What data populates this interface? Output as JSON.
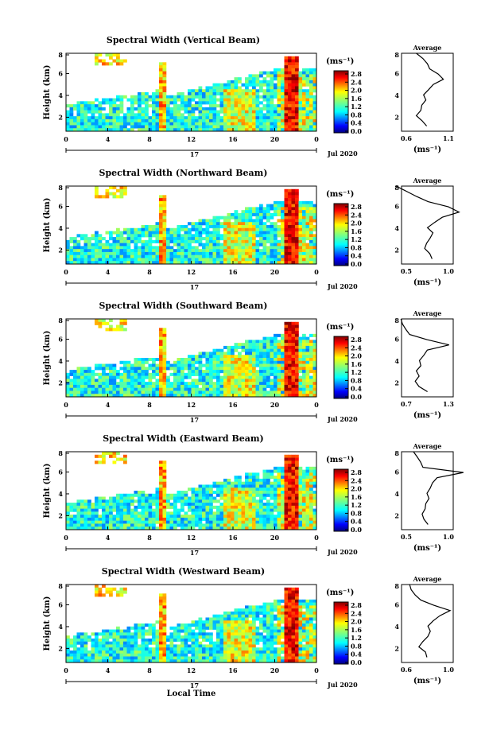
{
  "panels": [
    {
      "title": "Spectral Width (Vertical Beam)",
      "profile_xticks": [
        "0.6",
        "1.1"
      ]
    },
    {
      "title": "Spectral Width (Northward Beam)",
      "profile_xticks": [
        "0.5",
        "1.0"
      ]
    },
    {
      "title": "Spectral Width (Southward Beam)",
      "profile_xticks": [
        "0.7",
        "1.3"
      ]
    },
    {
      "title": "Spectral Width (Eastward Beam)",
      "profile_xticks": [
        "0.5",
        "1.0"
      ]
    },
    {
      "title": "Spectral Width (Westward Beam)",
      "profile_xticks": [
        "0.6",
        "1.0"
      ]
    }
  ],
  "common": {
    "ylabel": "Height (km)",
    "time_ticks": [
      "0",
      "4",
      "8",
      "12",
      "16",
      "20",
      "0"
    ],
    "height_ticks": [
      "8",
      "6",
      "4",
      "2"
    ],
    "date_day": "17",
    "date_label": "Jul 2020",
    "unit_label": "(ms⁻¹)",
    "colorbar_ticks": [
      "2.8",
      "2.4",
      "2.0",
      "1.6",
      "1.2",
      "0.8",
      "0.4",
      "0.0"
    ],
    "average_title": "Average",
    "profile_height_ticks": [
      "8",
      "6",
      "4",
      "2"
    ],
    "xlabel": "Local Time"
  },
  "colors": {
    "jet": [
      "#00007f",
      "#0000ff",
      "#007fff",
      "#00ffff",
      "#7fff7f",
      "#ffff00",
      "#ff7f00",
      "#ff0000",
      "#7f0000"
    ]
  },
  "chart_data": {
    "type": "heatmap",
    "x_range_hours": [
      0,
      24
    ],
    "y_range_km": [
      0.5,
      8
    ],
    "colorbar_range": [
      0.0,
      2.9
    ],
    "description_source": "time-height spectral width with average profile per beam",
    "profiles": [
      {
        "beam": "Vertical",
        "xlim": [
          0.6,
          1.1
        ],
        "heights": [
          1,
          1.5,
          2,
          2.5,
          3,
          3.5,
          4,
          4.5,
          5,
          5.5,
          6,
          6.5,
          7,
          7.5,
          8
        ],
        "values": [
          0.85,
          0.8,
          0.75,
          0.78,
          0.8,
          0.83,
          0.82,
          0.86,
          0.9,
          1.0,
          0.95,
          0.88,
          0.85,
          0.8,
          0.75
        ]
      },
      {
        "beam": "Northward",
        "xlim": [
          0.5,
          1.0
        ],
        "heights": [
          1,
          1.5,
          2,
          2.5,
          3,
          3.5,
          4,
          4.5,
          5,
          5.5,
          6,
          6.5,
          7,
          7.5,
          8
        ],
        "values": [
          0.8,
          0.78,
          0.72,
          0.75,
          0.78,
          0.8,
          0.75,
          0.82,
          0.9,
          1.05,
          0.95,
          0.75,
          0.65,
          0.55,
          0.45
        ]
      },
      {
        "beam": "Southward",
        "xlim": [
          0.7,
          1.3
        ],
        "heights": [
          1,
          1.5,
          2,
          2.5,
          3,
          3.5,
          4,
          4.5,
          5,
          5.5,
          6,
          6.5,
          7,
          7.5,
          8
        ],
        "values": [
          1.0,
          0.9,
          0.85,
          0.9,
          0.88,
          0.92,
          0.9,
          0.95,
          1.0,
          1.25,
          1.0,
          0.8,
          0.75,
          0.72,
          0.7
        ]
      },
      {
        "beam": "Eastward",
        "xlim": [
          0.5,
          1.0
        ],
        "heights": [
          1,
          1.5,
          2,
          2.5,
          3,
          3.5,
          4,
          4.5,
          5,
          5.5,
          6,
          6.5,
          7,
          7.5,
          8
        ],
        "values": [
          0.75,
          0.72,
          0.7,
          0.72,
          0.74,
          0.76,
          0.75,
          0.78,
          0.8,
          0.85,
          1.1,
          0.7,
          0.68,
          0.65,
          0.62
        ]
      },
      {
        "beam": "Westward",
        "xlim": [
          0.6,
          1.0
        ],
        "heights": [
          1,
          1.5,
          2,
          2.5,
          3,
          3.5,
          4,
          4.5,
          5,
          5.5,
          6,
          6.5,
          7,
          7.5,
          8
        ],
        "values": [
          0.8,
          0.78,
          0.74,
          0.76,
          0.8,
          0.82,
          0.8,
          0.85,
          0.9,
          0.98,
          0.85,
          0.75,
          0.7,
          0.68,
          0.66
        ]
      }
    ]
  }
}
